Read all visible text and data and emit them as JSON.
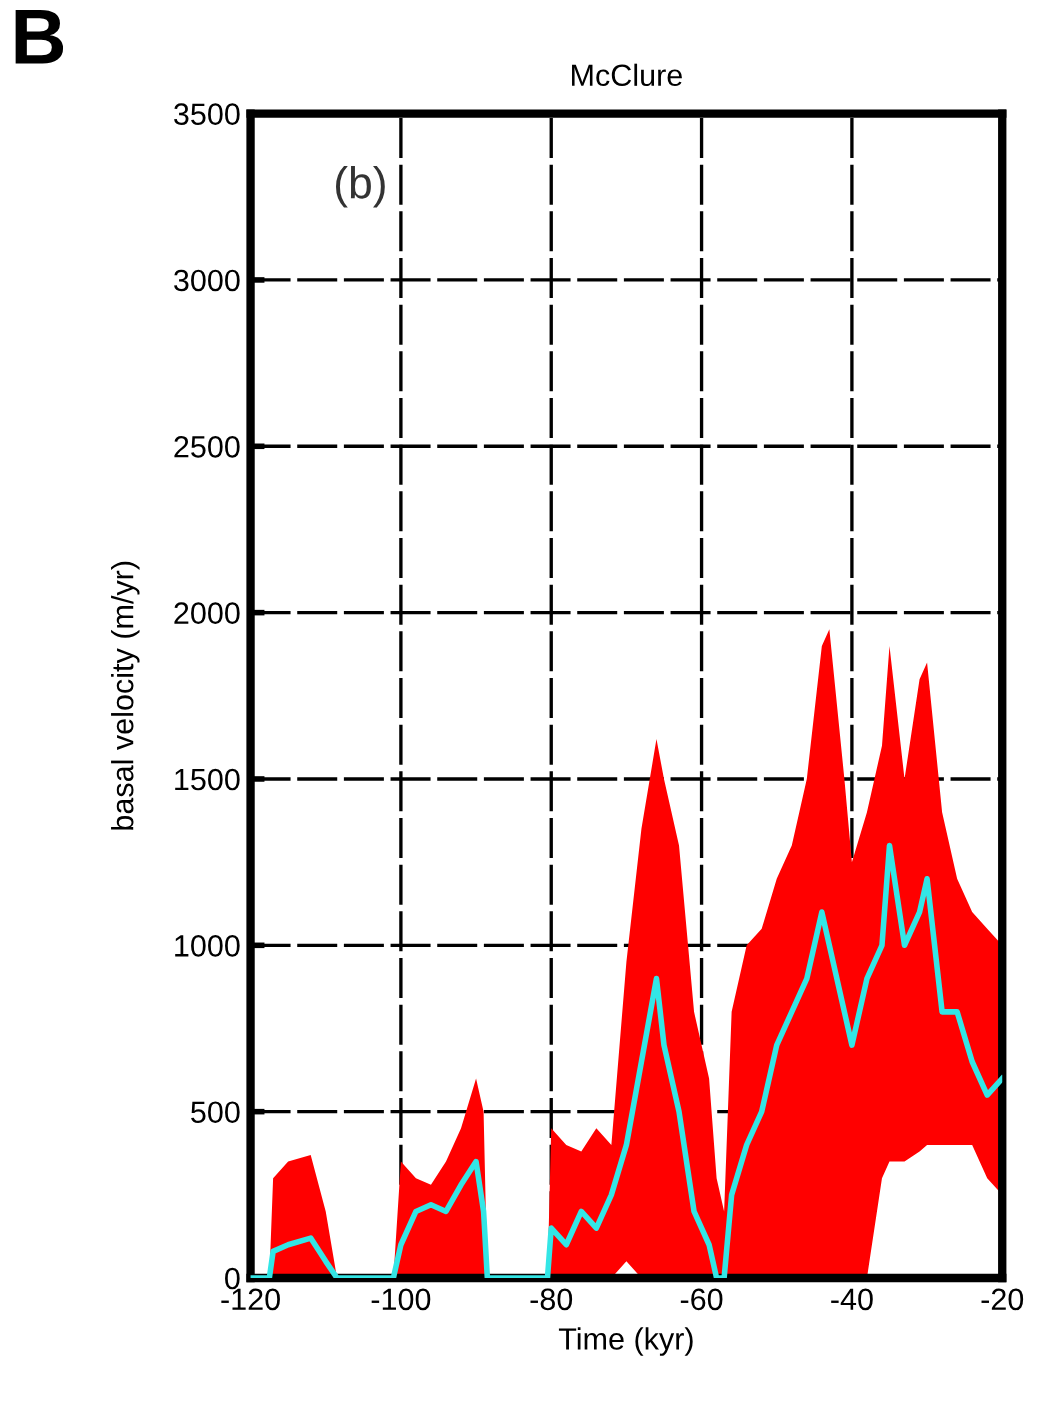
{
  "chart_data": {
    "type": "line",
    "title": "McClure",
    "xlabel": "Time (kyr)",
    "ylabel": "basal velocity (m/yr)",
    "annotations": [
      "B",
      "(b)"
    ],
    "xlim": [
      -120,
      -20
    ],
    "xticks": [
      -120,
      -100,
      -80,
      -60,
      -40,
      -20
    ],
    "ylim": [
      0,
      3500
    ],
    "yticks": [
      0,
      500,
      1000,
      1500,
      2000,
      2500,
      3000,
      3500
    ],
    "grid": true,
    "legend": false,
    "series": [
      {
        "color": "#33e6e6",
        "x": [
          -120,
          -117.5,
          -117,
          -115,
          -112,
          -110,
          -108.5,
          -101,
          -100,
          -98,
          -96,
          -94,
          -92,
          -90,
          -89,
          -88.5,
          -80.5,
          -80,
          -78,
          -76,
          -74,
          -72,
          -70,
          -68,
          -66,
          -65,
          -63,
          -61,
          -59,
          -58,
          -57,
          -56,
          -54,
          -52,
          -50,
          -48,
          -46,
          -44,
          -43,
          -41,
          -40,
          -38,
          -36,
          -35,
          -33,
          -31,
          -30,
          -28,
          -26,
          -24,
          -22,
          -20
        ],
        "values": [
          0,
          0,
          80,
          100,
          120,
          50,
          0,
          0,
          100,
          200,
          220,
          200,
          280,
          350,
          200,
          0,
          0,
          150,
          100,
          200,
          150,
          250,
          400,
          650,
          900,
          700,
          500,
          200,
          100,
          0,
          0,
          250,
          400,
          500,
          700,
          800,
          900,
          1100,
          1000,
          800,
          700,
          900,
          1000,
          1300,
          1000,
          1100,
          1200,
          800,
          800,
          650,
          550,
          600
        ],
        "lower": [
          0,
          0,
          0,
          0,
          0,
          0,
          0,
          0,
          0,
          0,
          0,
          0,
          0,
          0,
          0,
          0,
          0,
          0,
          0,
          0,
          0,
          0,
          50,
          0,
          0,
          0,
          0,
          0,
          0,
          0,
          0,
          0,
          0,
          0,
          0,
          0,
          0,
          0,
          0,
          0,
          0,
          0,
          300,
          350,
          350,
          380,
          400,
          400,
          400,
          400,
          300,
          250
        ],
        "upper": [
          0,
          0,
          300,
          350,
          370,
          200,
          0,
          0,
          350,
          300,
          280,
          350,
          450,
          600,
          500,
          0,
          0,
          450,
          400,
          380,
          450,
          400,
          950,
          1350,
          1620,
          1500,
          1300,
          800,
          600,
          300,
          200,
          800,
          1000,
          1050,
          1200,
          1300,
          1500,
          1900,
          1950,
          1500,
          1250,
          1400,
          1600,
          1900,
          1500,
          1800,
          1850,
          1400,
          1200,
          1100,
          1050,
          1000
        ]
      }
    ]
  }
}
